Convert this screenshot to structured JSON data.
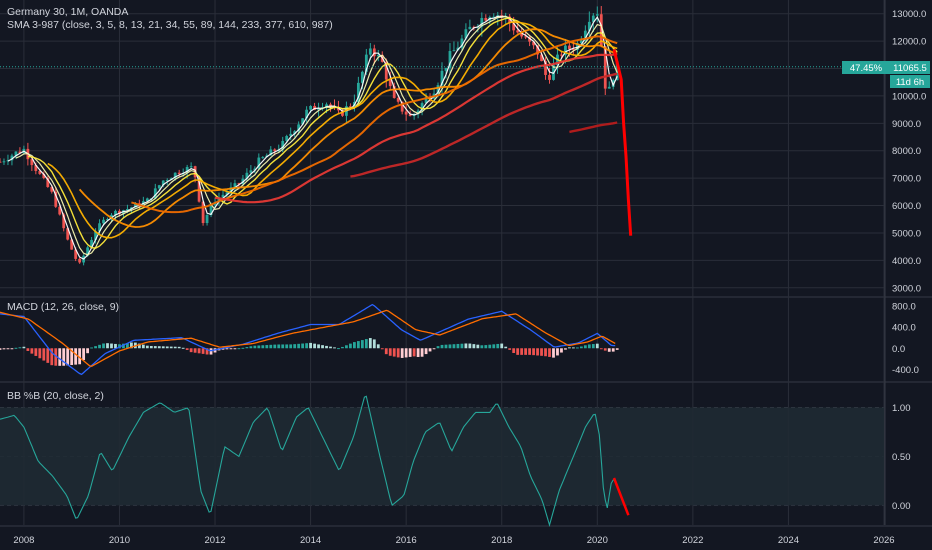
{
  "header": {
    "symbol": "Germany 30, 1M, OANDA",
    "sma_indicator": "SMA 3-987 (close, 3, 5, 8, 13, 21, 34, 55, 89, 144, 233, 377, 610, 987)"
  },
  "price_tag": {
    "change": "47.45%",
    "price": "11065.5",
    "countdown": "11d 6h"
  },
  "colors": {
    "background": "#131722",
    "up": "#26a69a",
    "down": "#ef5350",
    "grid": "#2a2e39",
    "text": "#d1d4dc",
    "tag": "#26a69a",
    "macd_line": "#2962ff",
    "signal_line": "#ff6d00",
    "bbp_line": "#26a69a",
    "annotation": "#ff0000"
  },
  "chart_data": [
    {
      "type": "candlestick",
      "pane": "price",
      "x_ticks": [
        "2008",
        "2010",
        "2012",
        "2014",
        "2016",
        "2018",
        "2020",
        "2022",
        "2024",
        "2026"
      ],
      "ylim": [
        2700,
        13500
      ],
      "y_ticks": [
        "13000.0",
        "12000.0",
        "11000.0",
        "10000.0",
        "9000.0",
        "8000.0",
        "7000.0",
        "6000.0",
        "5000.0",
        "4000.0",
        "3000.0"
      ],
      "last_price": 11065.5,
      "anchors": [
        [
          2007.5,
          7600
        ],
        [
          2007.8,
          7900
        ],
        [
          2008.0,
          8050
        ],
        [
          2008.3,
          7200
        ],
        [
          2008.6,
          6400
        ],
        [
          2008.9,
          4800
        ],
        [
          2009.15,
          3800
        ],
        [
          2009.5,
          5100
        ],
        [
          2009.8,
          5700
        ],
        [
          2010.2,
          5900
        ],
        [
          2010.6,
          6200
        ],
        [
          2010.9,
          6900
        ],
        [
          2011.3,
          7300
        ],
        [
          2011.55,
          7400
        ],
        [
          2011.75,
          5400
        ],
        [
          2012.0,
          6200
        ],
        [
          2012.5,
          6800
        ],
        [
          2012.9,
          7600
        ],
        [
          2013.4,
          8200
        ],
        [
          2013.9,
          9400
        ],
        [
          2014.3,
          9800
        ],
        [
          2014.6,
          9300
        ],
        [
          2014.9,
          9800
        ],
        [
          2015.25,
          11800
        ],
        [
          2015.5,
          11200
        ],
        [
          2015.75,
          9800
        ],
        [
          2016.1,
          9200
        ],
        [
          2016.6,
          10300
        ],
        [
          2016.9,
          11400
        ],
        [
          2017.4,
          12600
        ],
        [
          2017.8,
          13100
        ],
        [
          2018.1,
          12800
        ],
        [
          2018.4,
          12200
        ],
        [
          2018.75,
          11600
        ],
        [
          2018.95,
          10600
        ],
        [
          2019.25,
          11600
        ],
        [
          2019.6,
          11900
        ],
        [
          2019.85,
          13000
        ],
        [
          2020.0,
          13100
        ],
        [
          2020.1,
          11600
        ],
        [
          2020.2,
          9800
        ],
        [
          2020.3,
          10600
        ],
        [
          2020.4,
          11065
        ]
      ],
      "sma_colors": [
        "#ffffff",
        "#f5f5b0",
        "#ffeb3b",
        "#ffb300",
        "#ff8f00",
        "#ef6c00",
        "#e53935",
        "#c62828",
        "#b71c1c",
        "#ffeb3b",
        "#ff9800",
        "#2e7d32",
        "#ffffff"
      ],
      "sma_periods": [
        3,
        5,
        8,
        13,
        21,
        34,
        55,
        89,
        144,
        233,
        377,
        610,
        987
      ],
      "annotation": {
        "type": "drawn-line",
        "points": [
          [
            2020.35,
            11700
          ],
          [
            2020.5,
            10600
          ],
          [
            2020.55,
            9000
          ],
          [
            2020.6,
            7800
          ],
          [
            2020.65,
            6200
          ],
          [
            2020.7,
            4900
          ]
        ]
      }
    },
    {
      "type": "histogram+line",
      "pane": "macd",
      "title": "MACD (12, 26, close, 9)",
      "ylim": [
        -600,
        950
      ],
      "y_ticks": [
        "800.0",
        "400.0",
        "0.0",
        "-400.0"
      ],
      "macd_anchors": [
        [
          2007.5,
          650
        ],
        [
          2008.0,
          600
        ],
        [
          2008.6,
          -100
        ],
        [
          2009.2,
          -500
        ],
        [
          2009.7,
          -100
        ],
        [
          2010.3,
          150
        ],
        [
          2011.3,
          200
        ],
        [
          2011.9,
          -50
        ],
        [
          2012.6,
          80
        ],
        [
          2013.3,
          280
        ],
        [
          2014.0,
          450
        ],
        [
          2014.6,
          450
        ],
        [
          2015.3,
          830
        ],
        [
          2015.9,
          350
        ],
        [
          2016.3,
          150
        ],
        [
          2017.3,
          550
        ],
        [
          2018.0,
          700
        ],
        [
          2018.6,
          350
        ],
        [
          2019.1,
          20
        ],
        [
          2019.6,
          100
        ],
        [
          2020.0,
          280
        ],
        [
          2020.3,
          50
        ]
      ],
      "signal_anchors": [
        [
          2007.5,
          680
        ],
        [
          2008.1,
          550
        ],
        [
          2008.8,
          100
        ],
        [
          2009.4,
          -350
        ],
        [
          2010.0,
          -50
        ],
        [
          2010.6,
          120
        ],
        [
          2011.5,
          190
        ],
        [
          2012.1,
          20
        ],
        [
          2012.8,
          90
        ],
        [
          2013.6,
          280
        ],
        [
          2014.3,
          400
        ],
        [
          2014.9,
          500
        ],
        [
          2015.6,
          720
        ],
        [
          2016.2,
          350
        ],
        [
          2016.7,
          250
        ],
        [
          2017.6,
          560
        ],
        [
          2018.3,
          650
        ],
        [
          2018.9,
          300
        ],
        [
          2019.4,
          50
        ],
        [
          2019.8,
          120
        ],
        [
          2020.1,
          230
        ],
        [
          2020.4,
          80
        ]
      ]
    },
    {
      "type": "line",
      "pane": "bb_percent_b",
      "title": "BB %B (20, close, 2)",
      "ylim": [
        -0.2,
        1.25
      ],
      "y_ticks": [
        "1.00",
        "0.50",
        "0.00"
      ],
      "band": [
        0,
        1
      ],
      "anchors": [
        [
          2007.5,
          0.88
        ],
        [
          2007.8,
          0.92
        ],
        [
          2008.0,
          0.8
        ],
        [
          2008.3,
          0.45
        ],
        [
          2008.6,
          0.3
        ],
        [
          2008.9,
          0.1
        ],
        [
          2009.1,
          -0.15
        ],
        [
          2009.35,
          0.1
        ],
        [
          2009.6,
          0.55
        ],
        [
          2009.85,
          0.35
        ],
        [
          2010.2,
          0.7
        ],
        [
          2010.5,
          0.95
        ],
        [
          2010.85,
          1.05
        ],
        [
          2011.15,
          0.95
        ],
        [
          2011.45,
          1.0
        ],
        [
          2011.7,
          0.15
        ],
        [
          2011.9,
          -0.1
        ],
        [
          2012.2,
          0.6
        ],
        [
          2012.5,
          0.5
        ],
        [
          2012.8,
          0.85
        ],
        [
          2013.1,
          1.0
        ],
        [
          2013.4,
          0.55
        ],
        [
          2013.7,
          0.9
        ],
        [
          2013.95,
          1.0
        ],
        [
          2014.3,
          0.65
        ],
        [
          2014.6,
          0.35
        ],
        [
          2014.9,
          0.7
        ],
        [
          2015.15,
          1.15
        ],
        [
          2015.45,
          0.5
        ],
        [
          2015.7,
          0.0
        ],
        [
          2015.95,
          0.1
        ],
        [
          2016.15,
          0.45
        ],
        [
          2016.4,
          0.75
        ],
        [
          2016.7,
          0.85
        ],
        [
          2016.95,
          0.55
        ],
        [
          2017.2,
          0.8
        ],
        [
          2017.45,
          0.95
        ],
        [
          2017.75,
          0.95
        ],
        [
          2017.9,
          1.05
        ],
        [
          2018.15,
          0.8
        ],
        [
          2018.4,
          0.6
        ],
        [
          2018.6,
          0.3
        ],
        [
          2018.85,
          0.05
        ],
        [
          2019.0,
          -0.2
        ],
        [
          2019.2,
          0.15
        ],
        [
          2019.5,
          0.5
        ],
        [
          2019.75,
          0.8
        ],
        [
          2019.95,
          0.95
        ],
        [
          2020.05,
          0.7
        ],
        [
          2020.12,
          0.2
        ],
        [
          2020.2,
          -0.05
        ],
        [
          2020.3,
          0.25
        ],
        [
          2020.4,
          0.28
        ]
      ],
      "annotation": {
        "type": "drawn-line",
        "points": [
          [
            2020.35,
            0.28
          ],
          [
            2020.65,
            -0.1
          ]
        ]
      }
    }
  ]
}
